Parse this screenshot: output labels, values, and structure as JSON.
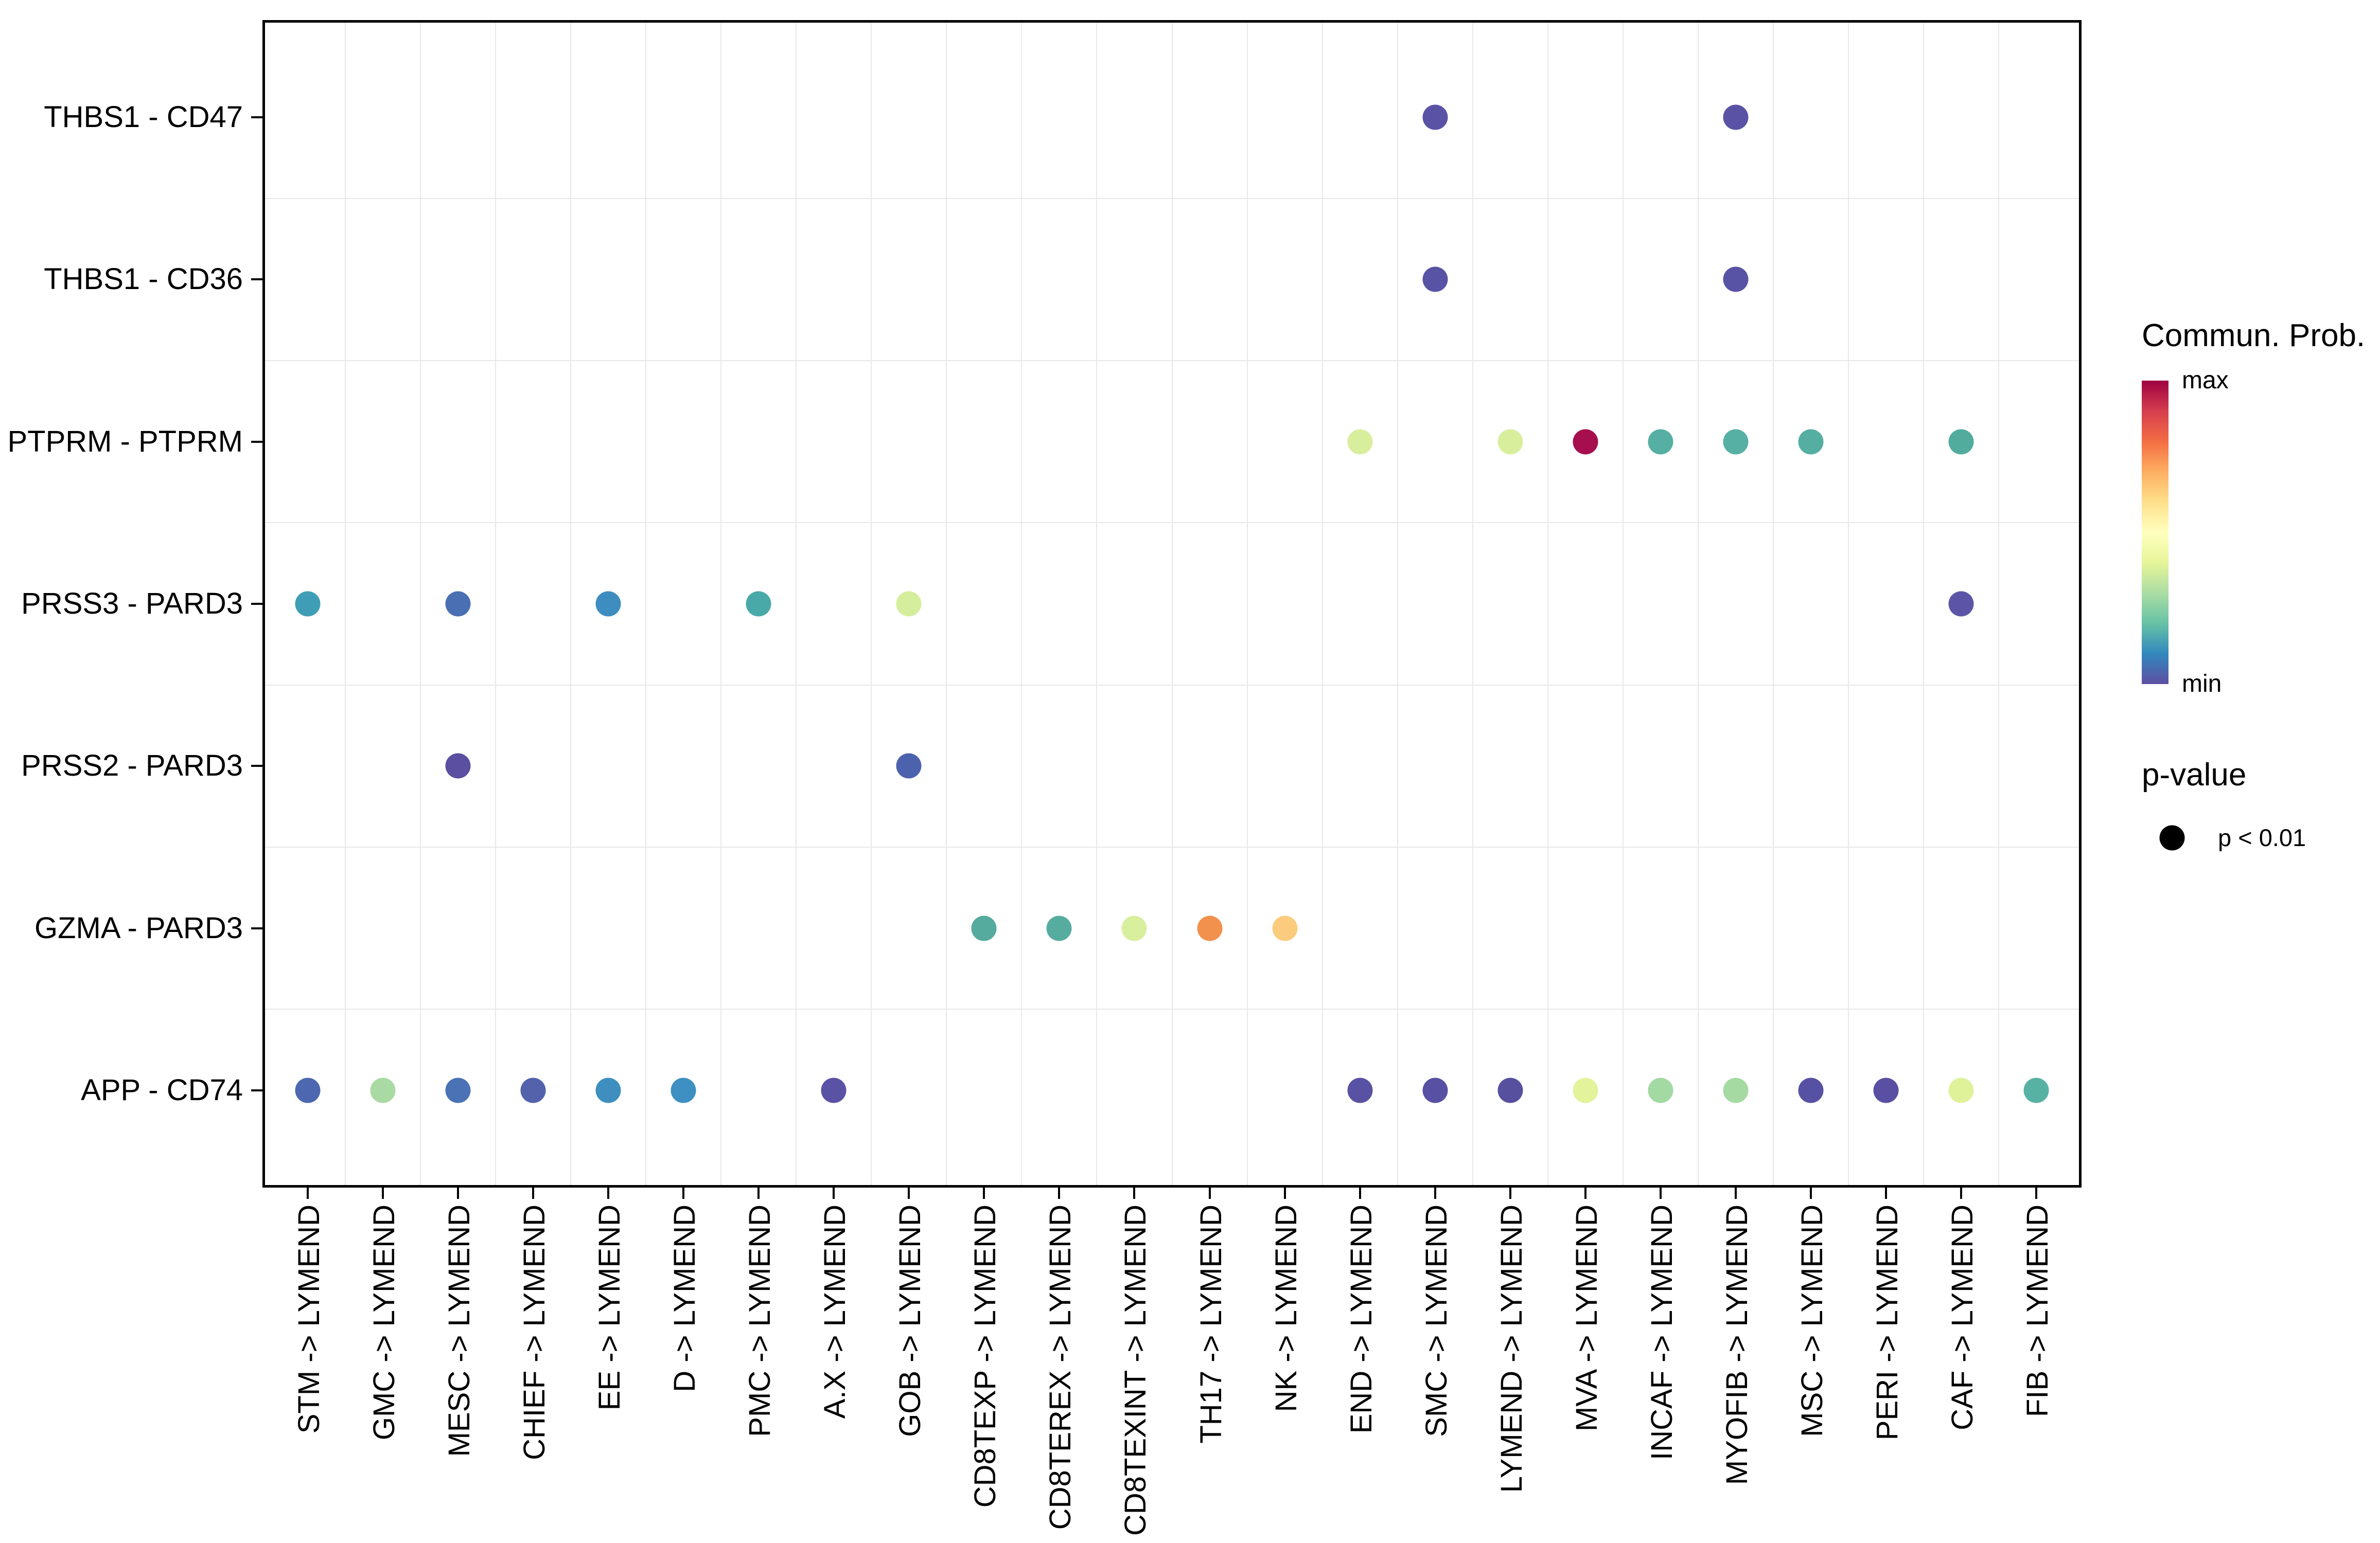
{
  "figure": {
    "background": "#ffffff"
  },
  "style": {
    "grid_color": "#e8e8e8",
    "border_color": "#000000",
    "text_color": "#000000"
  },
  "legend": {
    "colorbar_title": "Commun. Prob.",
    "max_label": "max",
    "min_label": "min",
    "pvalue_title": "p-value",
    "pvalue_item_label": "p < 0.01"
  },
  "chart_data": {
    "type": "scatter",
    "title": "",
    "xlabel": "",
    "ylabel": "",
    "grid": "light grey lines at category boundaries, black panel border",
    "legend_position": "right",
    "x_categories": [
      "STM -> LYMEND",
      "GMC -> LYMEND",
      "MESC -> LYMEND",
      "CHIEF -> LYMEND",
      "EE -> LYMEND",
      "D -> LYMEND",
      "PMC -> LYMEND",
      "A.X -> LYMEND",
      "GOB -> LYMEND",
      "CD8TEXP -> LYMEND",
      "CD8TEREX -> LYMEND",
      "CD8TEXINT -> LYMEND",
      "TH17 -> LYMEND",
      "NK -> LYMEND",
      "END -> LYMEND",
      "SMC -> LYMEND",
      "LYMEND -> LYMEND",
      "MVA -> LYMEND",
      "INCAF -> LYMEND",
      "MYOFIB -> LYMEND",
      "MSC -> LYMEND",
      "PERI -> LYMEND",
      "CAF -> LYMEND",
      "FIB -> LYMEND"
    ],
    "y_categories": [
      "THBS1 - CD47",
      "THBS1 - CD36",
      "PTPRM - PTPRM",
      "PRSS3 - PARD3",
      "PRSS2 - PARD3",
      "GZMA - PARD3",
      "APP - CD74"
    ],
    "color_scale": {
      "title": "Commun. Prob.",
      "type": "continuous",
      "palette": "Spectral reversed (min = purple, max = dark red)",
      "min_label": "min",
      "max_label": "max",
      "gradient_stops_top_to_bottom": [
        "#9e0142",
        "#d53e4f",
        "#f46d43",
        "#fdae61",
        "#fee08b",
        "#ffffbf",
        "#e6f598",
        "#abdda4",
        "#66c2a5",
        "#3288bd",
        "#5e4fa2"
      ]
    },
    "size_legend": {
      "title": "p-value",
      "items": [
        {
          "label": "p < 0.01"
        }
      ]
    },
    "points": [
      {
        "row": "THBS1 - CD47",
        "col": "SMC -> LYMEND",
        "color": "#5a53a5"
      },
      {
        "row": "THBS1 - CD47",
        "col": "MYOFIB -> LYMEND",
        "color": "#5a53a5"
      },
      {
        "row": "THBS1 - CD36",
        "col": "SMC -> LYMEND",
        "color": "#5953a5"
      },
      {
        "row": "THBS1 - CD36",
        "col": "MYOFIB -> LYMEND",
        "color": "#5953a5"
      },
      {
        "row": "PTPRM - PTPRM",
        "col": "END -> LYMEND",
        "color": "#d9ee9c"
      },
      {
        "row": "PTPRM - PTPRM",
        "col": "LYMEND -> LYMEND",
        "color": "#d9ee9c"
      },
      {
        "row": "PTPRM - PTPRM",
        "col": "MVA -> LYMEND",
        "color": "#a60e4e"
      },
      {
        "row": "PTPRM - PTPRM",
        "col": "INCAF -> LYMEND",
        "color": "#55afa2"
      },
      {
        "row": "PTPRM - PTPRM",
        "col": "MYOFIB -> LYMEND",
        "color": "#56b0a3"
      },
      {
        "row": "PTPRM - PTPRM",
        "col": "MSC -> LYMEND",
        "color": "#54aea1"
      },
      {
        "row": "PTPRM - PTPRM",
        "col": "CAF -> LYMEND",
        "color": "#52ac9e"
      },
      {
        "row": "PRSS3 - PARD3",
        "col": "STM -> LYMEND",
        "color": "#3f9eb5"
      },
      {
        "row": "PRSS3 - PARD3",
        "col": "MESC -> LYMEND",
        "color": "#4a70b3"
      },
      {
        "row": "PRSS3 - PARD3",
        "col": "EE -> LYMEND",
        "color": "#3e8dc0"
      },
      {
        "row": "PRSS3 - PARD3",
        "col": "PMC -> LYMEND",
        "color": "#49a9a9"
      },
      {
        "row": "PRSS3 - PARD3",
        "col": "GOB -> LYMEND",
        "color": "#d5ee9d"
      },
      {
        "row": "PRSS3 - PARD3",
        "col": "CAF -> LYMEND",
        "color": "#5c55a7"
      },
      {
        "row": "PRSS2 - PARD3",
        "col": "MESC -> LYMEND",
        "color": "#5a4fa1"
      },
      {
        "row": "PRSS2 - PARD3",
        "col": "GOB -> LYMEND",
        "color": "#4d62ad"
      },
      {
        "row": "GZMA - PARD3",
        "col": "CD8TEXP -> LYMEND",
        "color": "#54ab9e"
      },
      {
        "row": "GZMA - PARD3",
        "col": "CD8TEREX -> LYMEND",
        "color": "#56ad9f"
      },
      {
        "row": "GZMA - PARD3",
        "col": "CD8TEXINT -> LYMEND",
        "color": "#d8ef9e"
      },
      {
        "row": "GZMA - PARD3",
        "col": "TH17 -> LYMEND",
        "color": "#f2914d"
      },
      {
        "row": "GZMA - PARD3",
        "col": "NK -> LYMEND",
        "color": "#fbcc7e"
      },
      {
        "row": "APP - CD74",
        "col": "STM -> LYMEND",
        "color": "#4d68b0"
      },
      {
        "row": "APP - CD74",
        "col": "GMC -> LYMEND",
        "color": "#a9daa3"
      },
      {
        "row": "APP - CD74",
        "col": "MESC -> LYMEND",
        "color": "#4a72b5"
      },
      {
        "row": "APP - CD74",
        "col": "CHIEF -> LYMEND",
        "color": "#5362ab"
      },
      {
        "row": "APP - CD74",
        "col": "EE -> LYMEND",
        "color": "#3e8fc0"
      },
      {
        "row": "APP - CD74",
        "col": "D -> LYMEND",
        "color": "#3d90c1"
      },
      {
        "row": "APP - CD74",
        "col": "A.X -> LYMEND",
        "color": "#5a52a4"
      },
      {
        "row": "APP - CD74",
        "col": "END -> LYMEND",
        "color": "#5951a4"
      },
      {
        "row": "APP - CD74",
        "col": "SMC -> LYMEND",
        "color": "#5850a3"
      },
      {
        "row": "APP - CD74",
        "col": "LYMEND -> LYMEND",
        "color": "#57509f"
      },
      {
        "row": "APP - CD74",
        "col": "MVA -> LYMEND",
        "color": "#e2f39b"
      },
      {
        "row": "APP - CD74",
        "col": "INCAF -> LYMEND",
        "color": "#a3d9a2"
      },
      {
        "row": "APP - CD74",
        "col": "MYOFIB -> LYMEND",
        "color": "#a5daa3"
      },
      {
        "row": "APP - CD74",
        "col": "MSC -> LYMEND",
        "color": "#5751a3"
      },
      {
        "row": "APP - CD74",
        "col": "PERI -> LYMEND",
        "color": "#5950a3"
      },
      {
        "row": "APP - CD74",
        "col": "CAF -> LYMEND",
        "color": "#dff29a"
      },
      {
        "row": "APP - CD74",
        "col": "FIB -> LYMEND",
        "color": "#58b2a4"
      }
    ]
  }
}
